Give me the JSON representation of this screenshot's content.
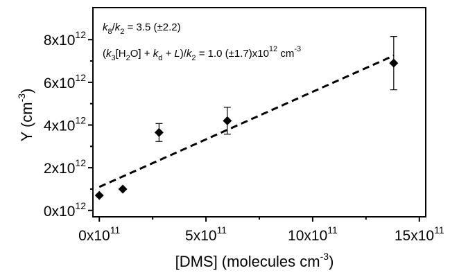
{
  "chart_data": {
    "type": "scatter",
    "xlabel": {
      "text": "[DMS] (molecules cm",
      "sup": "-3",
      "tail": ")"
    },
    "ylabel": {
      "text": "Y (cm",
      "sup": "-3",
      "tail": ")"
    },
    "xlim": [
      -0.3,
      15.3
    ],
    "ylim": [
      -0.3,
      9.5
    ],
    "x_ticks": [
      {
        "value": 0,
        "mantissa": "0",
        "base": "x10",
        "exp": "11"
      },
      {
        "value": 5,
        "mantissa": "5",
        "base": "x10",
        "exp": "11"
      },
      {
        "value": 10,
        "mantissa": "10",
        "base": "x10",
        "exp": "11"
      },
      {
        "value": 15,
        "mantissa": "15",
        "base": "x10",
        "exp": "11"
      }
    ],
    "y_ticks": [
      {
        "value": 0,
        "mantissa": "0",
        "base": "x10",
        "exp": "12"
      },
      {
        "value": 2,
        "mantissa": "2",
        "base": "x10",
        "exp": "12"
      },
      {
        "value": 4,
        "mantissa": "4",
        "base": "x10",
        "exp": "12"
      },
      {
        "value": 6,
        "mantissa": "6",
        "base": "x10",
        "exp": "12"
      },
      {
        "value": 8,
        "mantissa": "8",
        "base": "x10",
        "exp": "12"
      }
    ],
    "x_scale_note": "x in units of 1e11 molecules cm^-3",
    "y_scale_note": "y in units of 1e12 cm^-3",
    "series": [
      {
        "marker": "diamond",
        "points": [
          {
            "x": 0.0,
            "y": 0.7,
            "err": null
          },
          {
            "x": 1.1,
            "y": 1.0,
            "err": null
          },
          {
            "x": 2.8,
            "y": 3.65,
            "err": 0.42
          },
          {
            "x": 6.0,
            "y": 4.2,
            "err": 0.63
          },
          {
            "x": 13.8,
            "y": 6.9,
            "err": 1.25
          }
        ]
      }
    ],
    "fit_line": {
      "style": "dashed",
      "x": [
        0.0,
        13.8
      ],
      "y": [
        1.1,
        7.25
      ]
    },
    "annotations": [
      {
        "id": "k8",
        "text": "k8/k2 = 3.5 (±2.2)"
      },
      {
        "id": "k3",
        "text": "(k3[H2O] + kd + L)/k2 = 1.0 (±1.7)x10^12 cm^-3"
      }
    ]
  }
}
